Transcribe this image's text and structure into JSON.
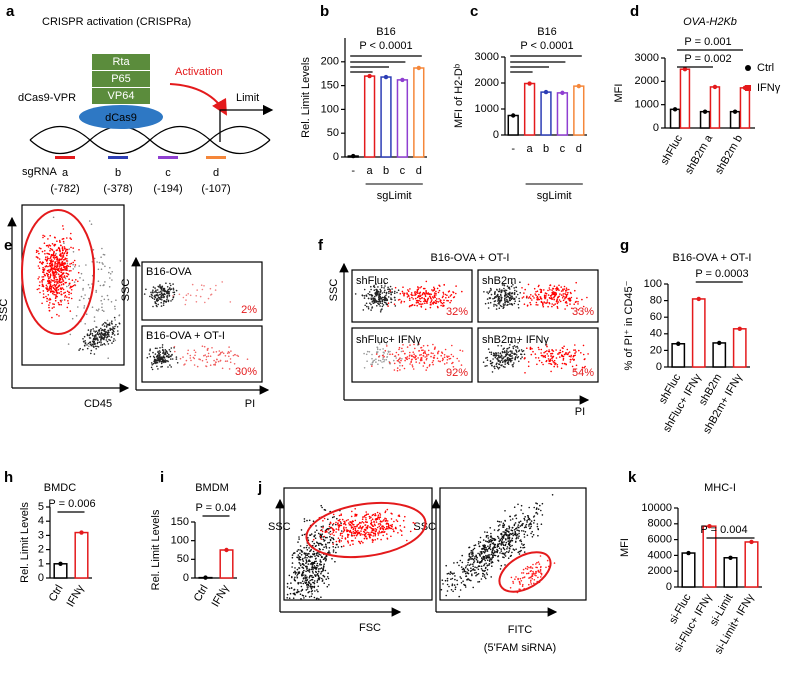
{
  "diagram": {
    "panel": "a",
    "title": "CRISPR activation (CRISPRa)",
    "construct": "dCas9-VPR",
    "domains": [
      "Rta",
      "P65",
      "VP64"
    ],
    "protein": "dCas9",
    "activation": "Activation",
    "gene": "Limit",
    "sgrna_label": "sgRNA",
    "guides": [
      {
        "name": "a",
        "position": "(-782)",
        "color": "#e41a1c"
      },
      {
        "name": "b",
        "position": "(-378)",
        "color": "#2d3eb5"
      },
      {
        "name": "c",
        "position": "(-194)",
        "color": "#8f3fd1"
      },
      {
        "name": "d",
        "position": "(-107)",
        "color": "#f5873a"
      }
    ]
  },
  "chart_data": [
    {
      "panel": "b",
      "type": "bar",
      "title": "B16",
      "y_label": "Rel. Limit Levels",
      "x_label": "sgLimit",
      "categories": [
        "-",
        "a",
        "b",
        "c",
        "d"
      ],
      "values": [
        2,
        170,
        168,
        162,
        187
      ],
      "colors": [
        "#000000",
        "#e41a1c",
        "#2d3eb5",
        "#8f3fd1",
        "#f5873a"
      ],
      "ylim": [
        0,
        250
      ],
      "yticks": [
        0,
        50,
        100,
        150,
        200
      ],
      "annotations": [
        "P < 0.0001"
      ]
    },
    {
      "panel": "c",
      "type": "bar",
      "title": "B16",
      "y_label": "MFI of H2-Dᵇ",
      "x_label": "sgLimit",
      "categories": [
        "-",
        "a",
        "b",
        "c",
        "d"
      ],
      "values": [
        750,
        1980,
        1650,
        1620,
        1880
      ],
      "colors": [
        "#000000",
        "#e41a1c",
        "#2d3eb5",
        "#8f3fd1",
        "#f5873a"
      ],
      "ylim": [
        0,
        3000
      ],
      "yticks": [
        0,
        1000,
        2000,
        3000
      ],
      "annotations": [
        "P < 0.0001"
      ]
    },
    {
      "panel": "d",
      "type": "bar",
      "title": "OVA-H2Kb",
      "y_label": "MFI",
      "categories": [
        "shFluc",
        "shB2m a",
        "shB2m b"
      ],
      "series": [
        {
          "name": "Ctrl",
          "color": "#000000",
          "values": [
            800,
            700,
            700
          ]
        },
        {
          "name": "IFNγ",
          "color": "#e41a1c",
          "values": [
            2520,
            1760,
            1720
          ]
        }
      ],
      "ylim": [
        0,
        3000
      ],
      "yticks": [
        0,
        1000,
        2000,
        3000
      ],
      "annotations": [
        "P = 0.001",
        "P = 0.002"
      ],
      "legend": "right"
    },
    {
      "panel": "g",
      "type": "bar",
      "title": "B16-OVA + OT-I",
      "y_label": "% of PI⁺ in CD45⁻",
      "categories": [
        "shFluc",
        "shFluc+ IFNγ",
        "shB2m",
        "shB2m+ IFNγ"
      ],
      "values": [
        28,
        82,
        29,
        46
      ],
      "colors": [
        "#000000",
        "#e41a1c",
        "#000000",
        "#e41a1c"
      ],
      "ylim": [
        0,
        100
      ],
      "yticks": [
        0,
        20,
        40,
        60,
        80,
        100
      ],
      "annotations": [
        "P = 0.0003"
      ]
    },
    {
      "panel": "h",
      "type": "bar",
      "title": "BMDC",
      "y_label": "Rel. Limit Levels",
      "categories": [
        "Ctrl",
        "IFNγ"
      ],
      "values": [
        1.0,
        3.2
      ],
      "colors": [
        "#000000",
        "#e41a1c"
      ],
      "ylim": [
        0,
        5
      ],
      "yticks": [
        0,
        1,
        2,
        3,
        4,
        5
      ],
      "annotations": [
        "P = 0.006"
      ]
    },
    {
      "panel": "i",
      "type": "bar",
      "title": "BMDM",
      "y_label": "Rel. Limit Levels",
      "categories": [
        "Ctrl",
        "IFNγ"
      ],
      "values": [
        1,
        75
      ],
      "colors": [
        "#000000",
        "#e41a1c"
      ],
      "ylim": [
        0,
        150
      ],
      "yticks": [
        0,
        50,
        100,
        150
      ],
      "annotations": [
        "P = 0.04"
      ]
    },
    {
      "panel": "k",
      "type": "bar",
      "title": "MHC-I",
      "y_label": "MFI",
      "categories": [
        "si-Fluc",
        "si-Fluc+ IFNγ",
        "si-Limit",
        "si-Limit+ IFNγ"
      ],
      "values": [
        4300,
        7700,
        3700,
        5700
      ],
      "colors": [
        "#000000",
        "#e41a1c",
        "#000000",
        "#e41a1c"
      ],
      "ylim": [
        0,
        10000
      ],
      "yticks": [
        0,
        2000,
        4000,
        6000,
        8000,
        10000
      ],
      "annotations": [
        "P = 0.004"
      ]
    }
  ],
  "flow": {
    "e": {
      "panel": "e",
      "main": {
        "y_label": "SSC",
        "x_label": "CD45"
      },
      "inset": {
        "y_label": "SSC",
        "x_label": "PI",
        "plots": [
          {
            "label": "B16-OVA",
            "percent": "2%"
          },
          {
            "label": "B16-OVA + OT-I",
            "percent": "30%"
          }
        ]
      }
    },
    "f": {
      "panel": "f",
      "title": "B16-OVA + OT-I",
      "y_label": "SSC",
      "x_label": "PI",
      "plots": [
        {
          "label": "shFluc",
          "percent": "32%"
        },
        {
          "label": "shB2m",
          "percent": "33%"
        },
        {
          "label": "shFluc+ IFNγ",
          "percent": "92%"
        },
        {
          "label": "shB2m+ IFNγ",
          "percent": "54%"
        }
      ]
    },
    "j": {
      "panel": "j",
      "plots": [
        {
          "y_label": "SSC",
          "x_label": "FSC"
        },
        {
          "y_label": "SSC",
          "x_label": "FITC",
          "x_sublabel": "(5'FAM siRNA)"
        }
      ]
    }
  }
}
